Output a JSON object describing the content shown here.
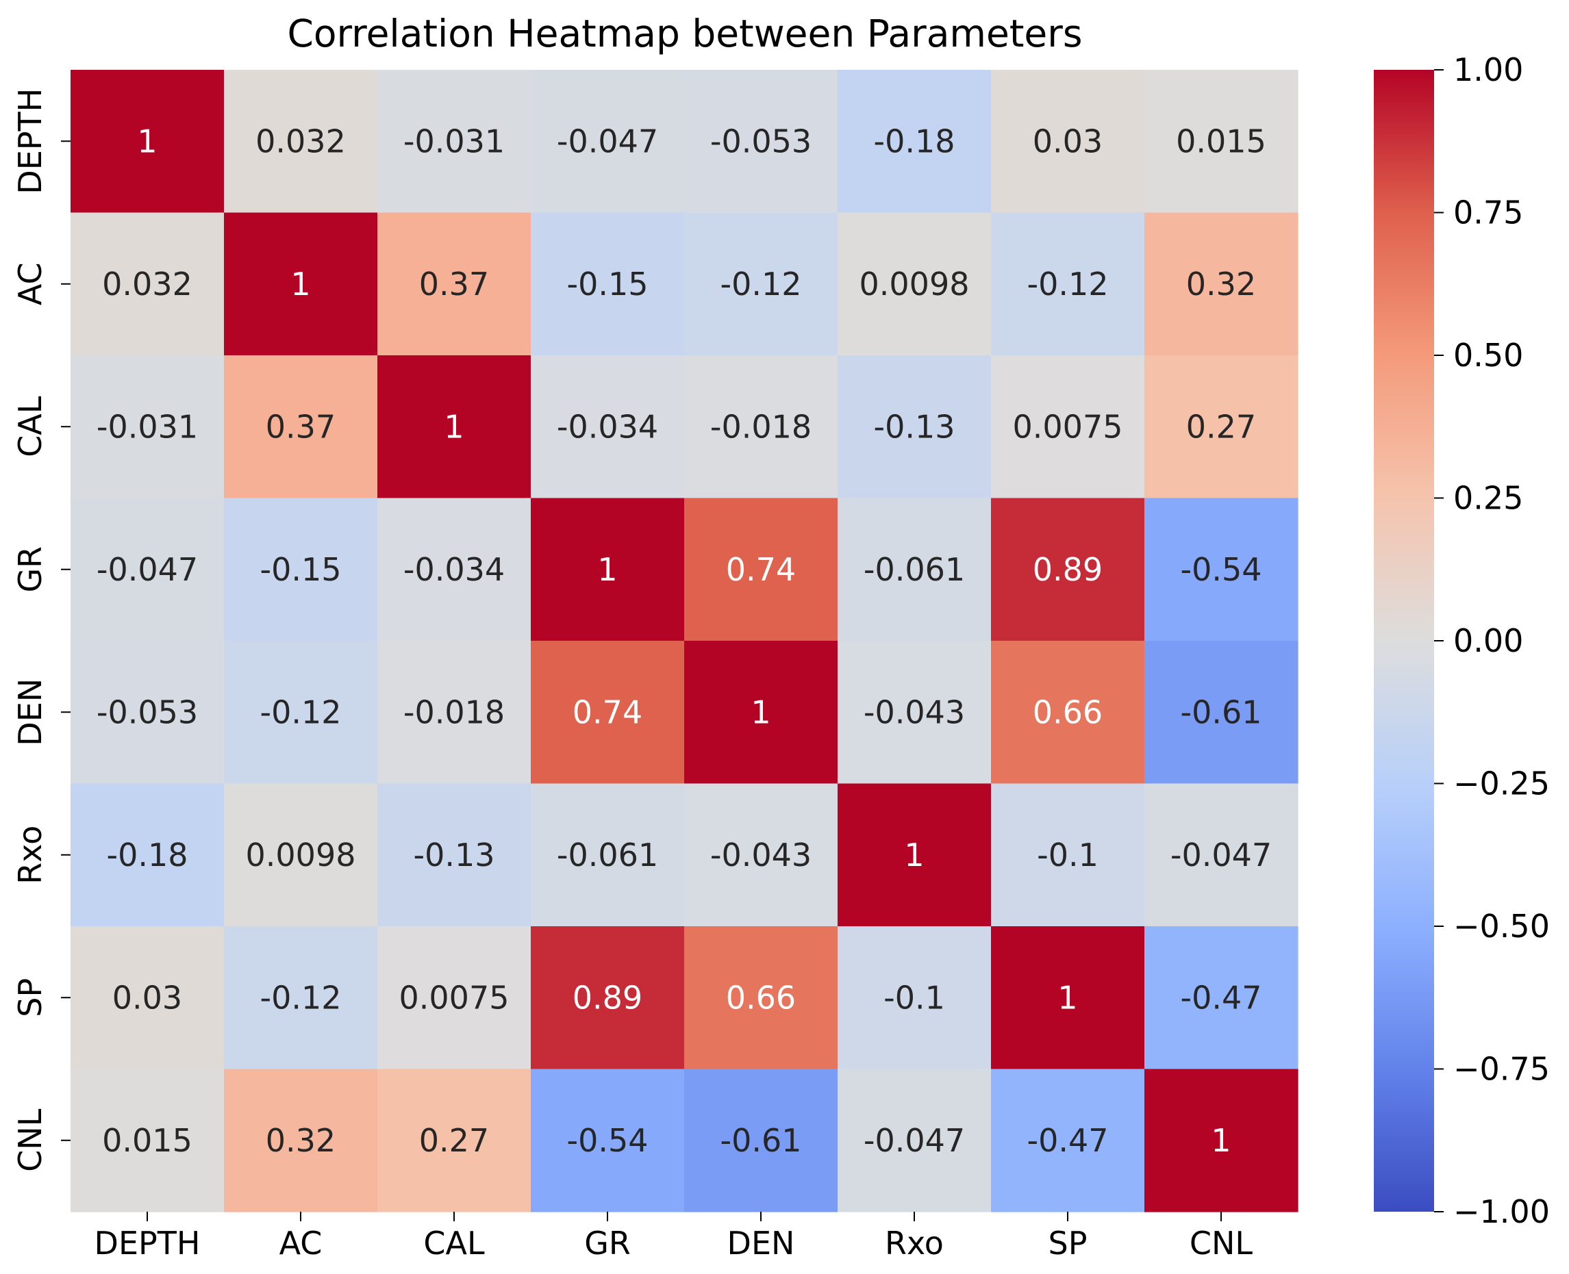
{
  "chart_data": {
    "type": "heatmap",
    "title": "Correlation Heatmap between Parameters",
    "x_categories": [
      "DEPTH",
      "AC",
      "CAL",
      "GR",
      "DEN",
      "Rxo",
      "SP",
      "CNL"
    ],
    "y_categories": [
      "DEPTH",
      "AC",
      "CAL",
      "GR",
      "DEN",
      "Rxo",
      "SP",
      "CNL"
    ],
    "values": [
      [
        1,
        0.032,
        -0.031,
        -0.047,
        -0.053,
        -0.18,
        0.03,
        0.015
      ],
      [
        0.032,
        1,
        0.37,
        -0.15,
        -0.12,
        0.0098,
        -0.12,
        0.32
      ],
      [
        -0.031,
        0.37,
        1,
        -0.034,
        -0.018,
        -0.13,
        0.0075,
        0.27
      ],
      [
        -0.047,
        -0.15,
        -0.034,
        1,
        0.74,
        -0.061,
        0.89,
        -0.54
      ],
      [
        -0.053,
        -0.12,
        -0.018,
        0.74,
        1,
        -0.043,
        0.66,
        -0.61
      ],
      [
        -0.18,
        0.0098,
        -0.13,
        -0.061,
        -0.043,
        1,
        -0.1,
        -0.047
      ],
      [
        0.03,
        -0.12,
        0.0075,
        0.89,
        0.66,
        -0.1,
        1,
        -0.47
      ],
      [
        0.015,
        0.32,
        0.27,
        -0.54,
        -0.61,
        -0.047,
        -0.47,
        1
      ]
    ],
    "value_labels": [
      [
        "1",
        "0.032",
        "-0.031",
        "-0.047",
        "-0.053",
        "-0.18",
        "0.03",
        "0.015"
      ],
      [
        "0.032",
        "1",
        "0.37",
        "-0.15",
        "-0.12",
        "0.0098",
        "-0.12",
        "0.32"
      ],
      [
        "-0.031",
        "0.37",
        "1",
        "-0.034",
        "-0.018",
        "-0.13",
        "0.0075",
        "0.27"
      ],
      [
        "-0.047",
        "-0.15",
        "-0.034",
        "1",
        "0.74",
        "-0.061",
        "0.89",
        "-0.54"
      ],
      [
        "-0.053",
        "-0.12",
        "-0.018",
        "0.74",
        "1",
        "-0.043",
        "0.66",
        "-0.61"
      ],
      [
        "-0.18",
        "0.0098",
        "-0.13",
        "-0.061",
        "-0.043",
        "1",
        "-0.1",
        "-0.047"
      ],
      [
        "0.03",
        "-0.12",
        "0.0075",
        "0.89",
        "0.66",
        "-0.1",
        "1",
        "-0.47"
      ],
      [
        "0.015",
        "0.32",
        "0.27",
        "-0.54",
        "-0.61",
        "-0.047",
        "-0.47",
        "1"
      ]
    ],
    "colorbar": {
      "range": [
        -1,
        1
      ],
      "ticks": [
        1,
        0.75,
        0.5,
        0.25,
        0,
        -0.25,
        -0.5,
        -0.75,
        -1
      ],
      "tick_labels": [
        "1.00",
        "0.75",
        "0.50",
        "0.25",
        "0.00",
        "−0.25",
        "−0.50",
        "−0.75",
        "−1.00"
      ],
      "colormap": "coolwarm",
      "position": "right"
    }
  }
}
